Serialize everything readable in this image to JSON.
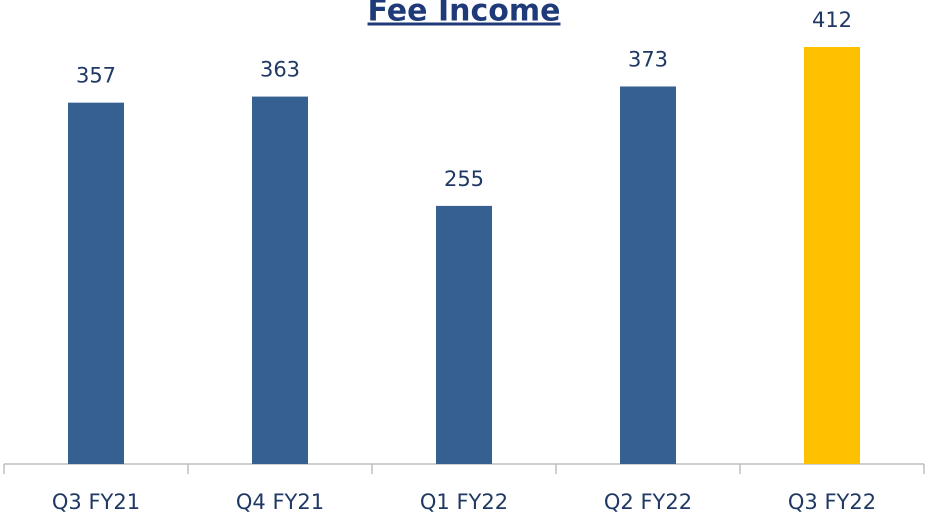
{
  "chart_data": {
    "type": "bar",
    "title": "Fee Income",
    "categories": [
      "Q3 FY21",
      "Q4 FY21",
      "Q1 FY22",
      "Q2 FY22",
      "Q3 FY22"
    ],
    "values": [
      357,
      363,
      255,
      373,
      412
    ],
    "colors": [
      "#376092",
      "#376092",
      "#376092",
      "#376092",
      "#ffc000"
    ]
  }
}
